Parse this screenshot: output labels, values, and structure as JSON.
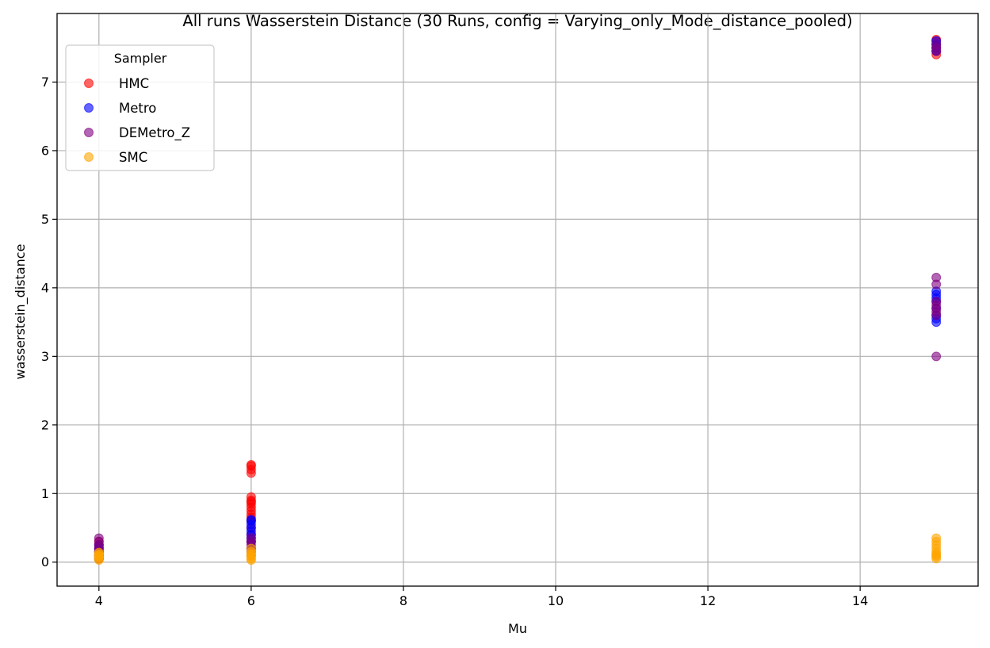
{
  "chart_data": {
    "type": "scatter",
    "title": "All runs Wasserstein Distance (30 Runs, config = Varying_only_Mode_distance_pooled)",
    "xlabel": "Mu",
    "ylabel": "wasserstein_distance",
    "xlim": [
      3.45,
      15.55
    ],
    "ylim": [
      -0.35,
      8.0
    ],
    "xticks": [
      4,
      6,
      8,
      10,
      12,
      14
    ],
    "yticks": [
      0,
      1,
      2,
      3,
      4,
      5,
      6,
      7
    ],
    "grid": true,
    "legend": {
      "title": "Sampler",
      "placement": "top-left"
    },
    "series": [
      {
        "name": "HMC",
        "color": "#ff0000",
        "points": [
          [
            4,
            0.05
          ],
          [
            4,
            0.08
          ],
          [
            4,
            0.1
          ],
          [
            4,
            0.12
          ],
          [
            4,
            0.15
          ],
          [
            4,
            0.18
          ],
          [
            4,
            0.2
          ],
          [
            4,
            0.22
          ],
          [
            4,
            0.25
          ],
          [
            4,
            0.3
          ],
          [
            6,
            0.1
          ],
          [
            6,
            0.2
          ],
          [
            6,
            0.3
          ],
          [
            6,
            0.4
          ],
          [
            6,
            0.5
          ],
          [
            6,
            0.6
          ],
          [
            6,
            0.65
          ],
          [
            6,
            0.7
          ],
          [
            6,
            0.75
          ],
          [
            6,
            0.8
          ],
          [
            6,
            0.85
          ],
          [
            6,
            0.88
          ],
          [
            6,
            0.9
          ],
          [
            6,
            0.95
          ],
          [
            6,
            1.3
          ],
          [
            6,
            1.35
          ],
          [
            6,
            1.4
          ],
          [
            6,
            1.42
          ],
          [
            15,
            7.4
          ],
          [
            15,
            7.45
          ],
          [
            15,
            7.5
          ],
          [
            15,
            7.55
          ],
          [
            15,
            7.6
          ],
          [
            15,
            7.62
          ]
        ]
      },
      {
        "name": "Metro",
        "color": "#0000ff",
        "points": [
          [
            4,
            0.05
          ],
          [
            4,
            0.1
          ],
          [
            4,
            0.15
          ],
          [
            4,
            0.2
          ],
          [
            4,
            0.25
          ],
          [
            6,
            0.2
          ],
          [
            6,
            0.3
          ],
          [
            6,
            0.35
          ],
          [
            6,
            0.4
          ],
          [
            6,
            0.45
          ],
          [
            6,
            0.5
          ],
          [
            6,
            0.55
          ],
          [
            6,
            0.6
          ],
          [
            6,
            0.62
          ],
          [
            15,
            3.5
          ],
          [
            15,
            3.55
          ],
          [
            15,
            3.6
          ],
          [
            15,
            3.7
          ],
          [
            15,
            3.8
          ],
          [
            15,
            3.85
          ],
          [
            15,
            3.9
          ],
          [
            15,
            3.95
          ],
          [
            15,
            7.45
          ],
          [
            15,
            7.5
          ],
          [
            15,
            7.55
          ],
          [
            15,
            7.6
          ]
        ]
      },
      {
        "name": "DEMetro_Z",
        "color": "#800080",
        "points": [
          [
            4,
            0.05
          ],
          [
            4,
            0.1
          ],
          [
            4,
            0.15
          ],
          [
            4,
            0.2
          ],
          [
            4,
            0.25
          ],
          [
            4,
            0.3
          ],
          [
            4,
            0.35
          ],
          [
            6,
            0.15
          ],
          [
            6,
            0.2
          ],
          [
            6,
            0.25
          ],
          [
            6,
            0.3
          ],
          [
            6,
            0.35
          ],
          [
            15,
            3.0
          ],
          [
            15,
            3.6
          ],
          [
            15,
            3.65
          ],
          [
            15,
            3.7
          ],
          [
            15,
            3.75
          ],
          [
            15,
            3.8
          ],
          [
            15,
            4.05
          ],
          [
            15,
            4.15
          ],
          [
            15,
            7.45
          ],
          [
            15,
            7.5
          ],
          [
            15,
            7.55
          ]
        ]
      },
      {
        "name": "SMC",
        "color": "#ffa500",
        "points": [
          [
            4,
            0.03
          ],
          [
            4,
            0.05
          ],
          [
            4,
            0.07
          ],
          [
            4,
            0.09
          ],
          [
            4,
            0.1
          ],
          [
            4,
            0.12
          ],
          [
            4,
            0.14
          ],
          [
            6,
            0.03
          ],
          [
            6,
            0.05
          ],
          [
            6,
            0.08
          ],
          [
            6,
            0.1
          ],
          [
            6,
            0.12
          ],
          [
            6,
            0.15
          ],
          [
            6,
            0.2
          ],
          [
            15,
            0.05
          ],
          [
            15,
            0.08
          ],
          [
            15,
            0.1
          ],
          [
            15,
            0.12
          ],
          [
            15,
            0.15
          ],
          [
            15,
            0.2
          ],
          [
            15,
            0.25
          ],
          [
            15,
            0.3
          ],
          [
            15,
            0.35
          ]
        ]
      }
    ]
  }
}
